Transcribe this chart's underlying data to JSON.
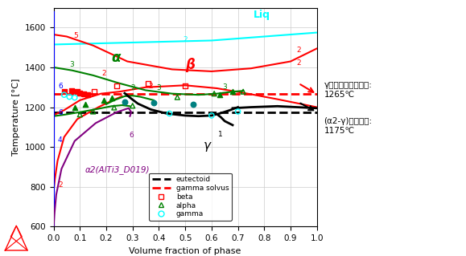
{
  "xlabel": "Volume fraction of phase",
  "ylabel": "Temperature [°C]",
  "xlim": [
    0.0,
    1.0
  ],
  "ylim": [
    600,
    1700
  ],
  "yticks": [
    600,
    800,
    1000,
    1200,
    1400,
    1600
  ],
  "xticks": [
    0.0,
    0.1,
    0.2,
    0.3,
    0.4,
    0.5,
    0.6,
    0.7,
    0.8,
    0.9,
    1.0
  ],
  "eutectoid_temp": 1175,
  "gamma_solvus_temp": 1265,
  "annotation_solvus": "γ相のソルバス温度:\n1265℃",
  "annotation_eutectoid": "(α2-γ)共析温度:\n1175℃",
  "alpha2_label": "α2(AlTi3_D019)",
  "gamma_label": "γ",
  "alpha_label": "α",
  "beta_label": "β",
  "liq_label": "Liq"
}
